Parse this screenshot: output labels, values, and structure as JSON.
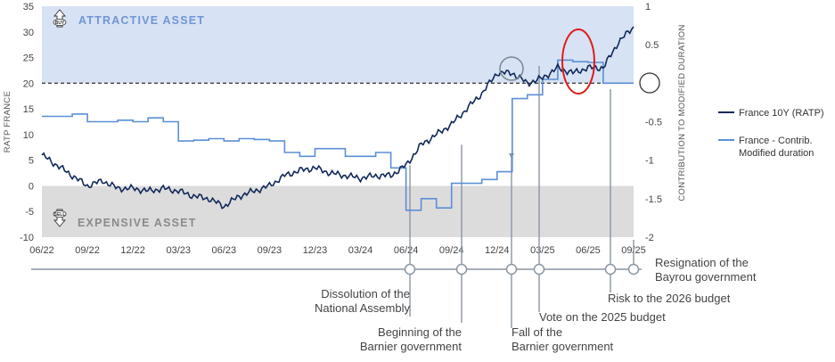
{
  "chart_data": {
    "type": "line",
    "x_ticks": [
      "06/22",
      "09/22",
      "12/22",
      "03/23",
      "06/23",
      "09/23",
      "12/23",
      "03/24",
      "06/24",
      "09/24",
      "12/24",
      "03/25",
      "06/25",
      "09/25"
    ],
    "ylabel": "RATP FRANCE",
    "ylabel_right": "CONTRIBUTION TO MODIFIED DURATION",
    "ylim": [
      -10,
      35
    ],
    "y_ticks": [
      35,
      30,
      25,
      20,
      15,
      10,
      5,
      0,
      -5,
      -10
    ],
    "ylim_right": [
      -2,
      1
    ],
    "y_ticks_right": [
      1,
      0.5,
      0,
      -0.5,
      -1,
      -1.5,
      -2
    ],
    "zones": [
      {
        "label": "ATTRACTIVE ASSET",
        "badge": "BUY",
        "from": 20,
        "to": 35,
        "color": "#d7e2f4"
      },
      {
        "label": "EXPENSIVE ASSET",
        "badge": "SELL",
        "from": -10,
        "to": 0,
        "color": "#dcdcdc"
      }
    ],
    "series": [
      {
        "name": "France 10Y (RATP)",
        "axis": "left",
        "color": "#10295a",
        "x": [
          "06/22",
          "07/22",
          "08/22",
          "09/22",
          "10/22",
          "11/22",
          "12/22",
          "01/23",
          "02/23",
          "03/23",
          "04/23",
          "05/23",
          "06/23",
          "07/23",
          "08/23",
          "09/23",
          "10/23",
          "11/23",
          "12/23",
          "01/24",
          "02/24",
          "03/24",
          "04/24",
          "05/24",
          "06/24",
          "07/24",
          "08/24",
          "09/24",
          "10/24",
          "11/24",
          "12/24",
          "01/25",
          "02/25",
          "03/25",
          "04/25",
          "05/25",
          "06/25",
          "07/25",
          "08/25",
          "09/25"
        ],
        "values": [
          6,
          4,
          2,
          0,
          1,
          -0.5,
          -0.5,
          -1,
          -0.5,
          -1,
          -2,
          -2.5,
          -4,
          -2,
          -1,
          0,
          2,
          3,
          3.5,
          2.5,
          2,
          1.5,
          2,
          2,
          4,
          8,
          10,
          12,
          15,
          18,
          22,
          22,
          20,
          21,
          23,
          22,
          23,
          23,
          28,
          31
        ]
      },
      {
        "name": "France - Contrib. Modified duration",
        "axis": "right",
        "color": "#5b8fd6",
        "x": [
          "06/22",
          "07/22",
          "08/22",
          "09/22",
          "10/22",
          "11/22",
          "12/22",
          "01/23",
          "02/23",
          "03/23",
          "04/23",
          "05/23",
          "06/23",
          "07/23",
          "08/23",
          "09/23",
          "10/23",
          "11/23",
          "12/23",
          "01/24",
          "02/24",
          "03/24",
          "04/24",
          "05/24",
          "06/24",
          "07/24",
          "08/24",
          "09/24",
          "10/24",
          "11/24",
          "12/24",
          "01/25",
          "02/25",
          "03/25",
          "04/25",
          "05/25",
          "06/25",
          "07/25",
          "08/25",
          "09/25"
        ],
        "values": [
          -0.43,
          -0.43,
          -0.4,
          -0.5,
          -0.5,
          -0.48,
          -0.5,
          -0.45,
          -0.5,
          -0.75,
          -0.74,
          -0.72,
          -0.75,
          -0.72,
          -0.73,
          -0.75,
          -0.9,
          -0.95,
          -0.85,
          -0.85,
          -0.95,
          -0.95,
          -0.9,
          -1.1,
          -1.65,
          -1.5,
          -1.62,
          -1.3,
          -1.3,
          -1.25,
          -1.15,
          -0.2,
          -0.15,
          0.05,
          0.3,
          0.28,
          0.27,
          0,
          0,
          0
        ]
      }
    ],
    "events": [
      {
        "date": "06/24",
        "label": [
          "Dissolution of the",
          "National Assembly"
        ]
      },
      {
        "date": "09/24",
        "label": [
          "Beginning of the",
          "Barnier government"
        ]
      },
      {
        "date": "12/24",
        "label": [
          "Fall of the",
          "Barnier government"
        ]
      },
      {
        "date": "02/25",
        "label": [
          "Vote on the 2025 budget"
        ]
      },
      {
        "date": "07/25",
        "label": [
          "Risk to the 2026 budget"
        ]
      },
      {
        "date": "08/25",
        "label": [
          "Resignation of the",
          "Bayrou government"
        ]
      }
    ]
  },
  "colors": {
    "rate_line": "#10295a",
    "contrib_line": "#5b8fd6",
    "highlight_circle": "#e01b1b",
    "grey_circle": "#7b8794",
    "timeline": "#8a96a3"
  }
}
